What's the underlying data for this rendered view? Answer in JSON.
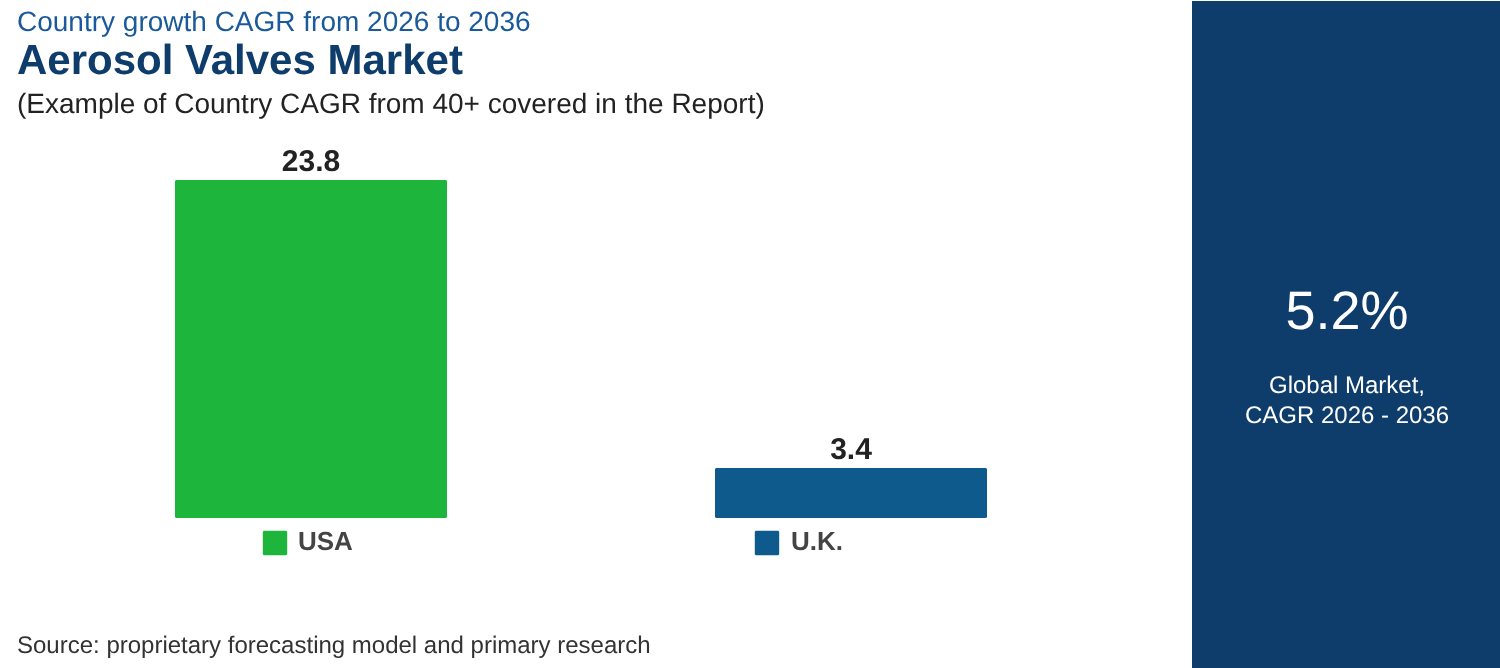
{
  "chart_data": {
    "type": "bar",
    "title": "Aerosol Valves Market",
    "subtitle": "(Example of Country CAGR from 40+ covered in the Report)",
    "categories": [
      null,
      null
    ],
    "series": [
      {
        "name": "USA",
        "color": "#1db53c",
        "values": [
          23.8,
          null
        ]
      },
      {
        "name": "U.K.",
        "color": "#0f5a8c",
        "values": [
          null,
          3.4
        ]
      }
    ],
    "stacked": true,
    "data_labels": true,
    "legend": "bottom",
    "grid": false,
    "annotations": [
      "Country growth CAGR from 2026 to 2036",
      "5.2%",
      "Global Market,",
      "CAGR 2026 - 2036",
      "Source: proprietary forecasting model and primary research"
    ]
  }
}
